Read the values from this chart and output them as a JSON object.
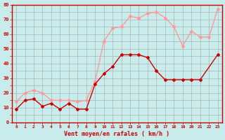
{
  "xlabel": "Vent moyen/en rafales ( km/h )",
  "x_labels": [
    "0",
    "1",
    "2",
    "3",
    "4",
    "5",
    "6",
    "7",
    "8",
    "9",
    "10",
    "11",
    "12",
    "13",
    "14",
    "15",
    "16",
    "17",
    "18",
    "19",
    "20",
    "21",
    "22",
    "23"
  ],
  "ylim": [
    0,
    80
  ],
  "ytick_vals": [
    0,
    5,
    10,
    15,
    20,
    25,
    30,
    35,
    40,
    45,
    50,
    55,
    60,
    65,
    70,
    75,
    80
  ],
  "ytick_labels": [
    "0",
    "",
    "10",
    "",
    "20",
    "",
    "30",
    "",
    "40",
    "",
    "50",
    "",
    "60",
    "",
    "70",
    "",
    "80"
  ],
  "background_color": "#c8ecec",
  "grid_color": "#b0b0b0",
  "mean_wind_color": "#cc0000",
  "gust_wind_color": "#ff9999",
  "mean_wind_x": [
    0,
    1,
    2,
    3,
    4,
    5,
    6,
    7,
    8,
    9,
    10,
    11,
    12,
    13,
    14,
    15,
    16,
    17,
    18,
    19,
    20,
    21,
    23
  ],
  "mean_wind_y": [
    9,
    15,
    16,
    11,
    13,
    9,
    13,
    9,
    9,
    26,
    33,
    38,
    46,
    46,
    46,
    44,
    35,
    29,
    29,
    29,
    29,
    29,
    46
  ],
  "gust_wind_x": [
    0,
    1,
    2,
    3,
    4,
    5,
    6,
    7,
    8,
    9,
    10,
    11,
    12,
    13,
    14,
    15,
    16,
    17,
    18,
    19,
    20,
    21,
    22,
    23
  ],
  "gust_wind_y": [
    14,
    20,
    22,
    20,
    15,
    15,
    15,
    14,
    15,
    28,
    55,
    64,
    65,
    72,
    71,
    74,
    75,
    71,
    65,
    52,
    62,
    58,
    58,
    77
  ]
}
